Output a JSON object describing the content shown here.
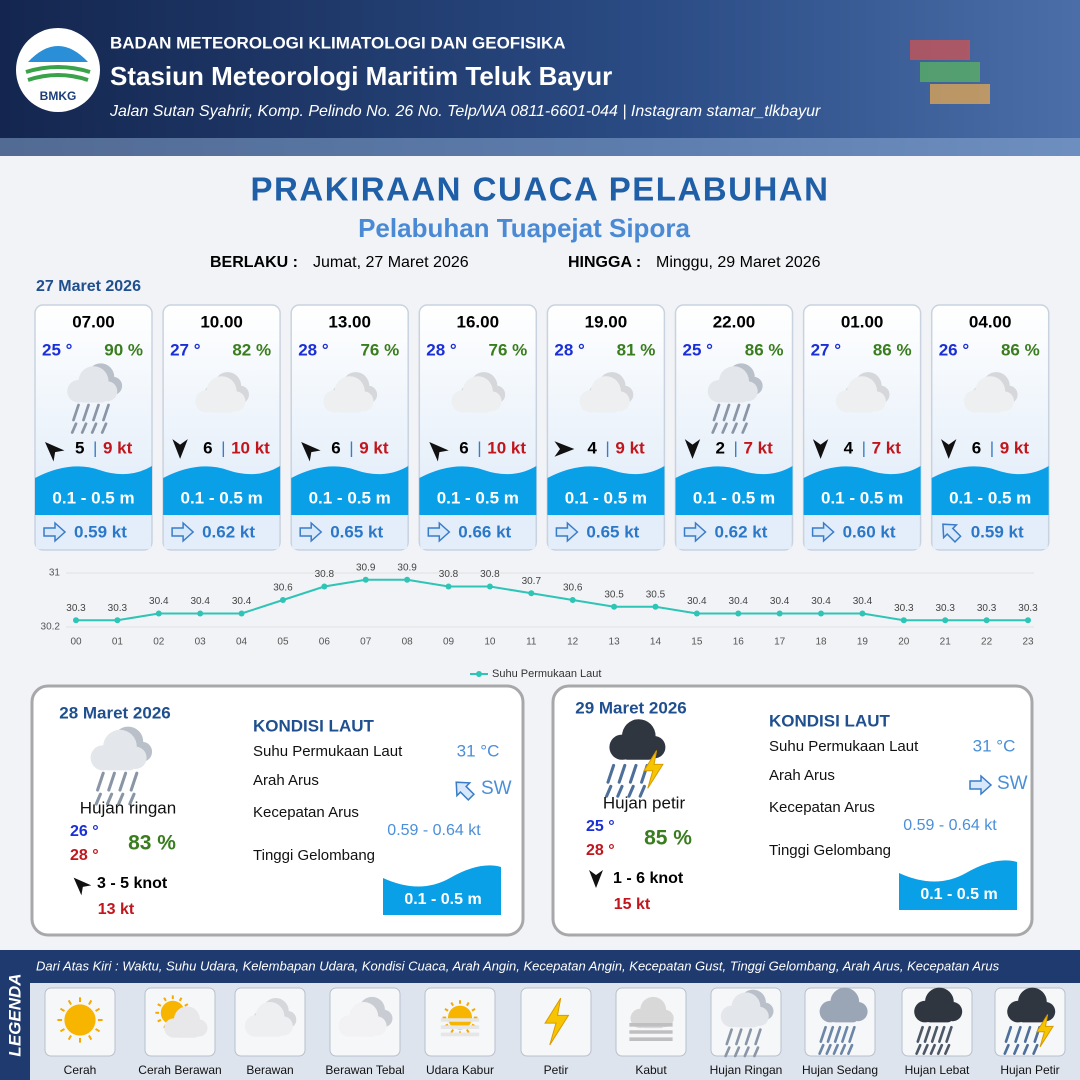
{
  "header": {
    "logo": "BMKG",
    "org": "BADAN METEOROLOGI KLIMATOLOGI DAN GEOFISIKA",
    "station": "Stasiun Meteorologi Maritim Teluk Bayur",
    "address": "Jalan Sutan Syahrir, Komp. Pelindo No. 26 No. Telp/WA 0811-6601-044 | Instagram stamar_tlkbayur"
  },
  "title": "PRAKIRAAN CUACA PELABUHAN",
  "subtitle": "Pelabuhan Tuapejat Sipora",
  "validity": {
    "from_label": "BERLAKU :",
    "from": "Jumat, 27 Maret 2026",
    "to_label": "HINGGA :",
    "to": "Minggu, 29 Maret 2026"
  },
  "day1": {
    "date": "27 Maret 2026",
    "slots": [
      {
        "time": "07.00",
        "temp": "25 °",
        "humidity": "90 %",
        "wind": "5",
        "gust": "9 kt",
        "wave": "0.1 - 0.5 m",
        "current": "0.59 kt"
      },
      {
        "time": "10.00",
        "temp": "27 °",
        "humidity": "82 %",
        "wind": "6",
        "gust": "10 kt",
        "wave": "0.1 - 0.5 m",
        "current": "0.62 kt"
      },
      {
        "time": "13.00",
        "temp": "28 °",
        "humidity": "76 %",
        "wind": "6",
        "gust": "9 kt",
        "wave": "0.1 - 0.5 m",
        "current": "0.65 kt"
      },
      {
        "time": "16.00",
        "temp": "28 °",
        "humidity": "76 %",
        "wind": "6",
        "gust": "10 kt",
        "wave": "0.1 - 0.5 m",
        "current": "0.66 kt"
      },
      {
        "time": "19.00",
        "temp": "28 °",
        "humidity": "81 %",
        "wind": "4",
        "gust": "9 kt",
        "wave": "0.1 - 0.5 m",
        "current": "0.65 kt"
      },
      {
        "time": "22.00",
        "temp": "25 °",
        "humidity": "86 %",
        "wind": "2",
        "gust": "7 kt",
        "wave": "0.1 - 0.5 m",
        "current": "0.62 kt"
      },
      {
        "time": "01.00",
        "temp": "27 °",
        "humidity": "86 %",
        "wind": "4",
        "gust": "7 kt",
        "wave": "0.1 - 0.5 m",
        "current": "0.60 kt"
      },
      {
        "time": "04.00",
        "temp": "26 °",
        "humidity": "86 %",
        "wind": "6",
        "gust": "9 kt",
        "wave": "0.1 - 0.5 m",
        "current": "0.59 kt"
      }
    ]
  },
  "chart_data": {
    "type": "line",
    "categories": [
      "00",
      "01",
      "02",
      "03",
      "04",
      "05",
      "06",
      "07",
      "08",
      "09",
      "10",
      "11",
      "12",
      "13",
      "14",
      "15",
      "16",
      "17",
      "18",
      "19",
      "20",
      "21",
      "22",
      "23"
    ],
    "series": [
      {
        "name": "Suhu Permukaan Laut",
        "color": "#2ec4b6",
        "values": [
          30.3,
          30.3,
          30.4,
          30.4,
          30.4,
          30.6,
          30.8,
          30.9,
          30.9,
          30.8,
          30.8,
          30.7,
          30.6,
          30.5,
          30.5,
          30.4,
          30.4,
          30.4,
          30.4,
          30.4,
          30.3,
          30.3,
          30.3,
          30.3
        ]
      }
    ],
    "ylim": [
      30.2,
      31
    ],
    "yticks": [
      30.2,
      31
    ]
  },
  "days": [
    {
      "date": "28 Maret 2026",
      "weather": "Hujan ringan",
      "temp_min": "26 °",
      "temp_max": "28 °",
      "humidity": "83 %",
      "wind": "3  - 5 knot",
      "gust": "13 kt",
      "sea": {
        "heading": "KONDISI LAUT",
        "sst_label": "Suhu Permukaan Laut",
        "sst": "31 °C",
        "dir_label": "Arah Arus",
        "dir": "SW",
        "speed_label": "Kecepatan Arus",
        "speed": "0.59 - 0.64 kt",
        "wave_label": "Tinggi Gelombang",
        "wave": "0.1 - 0.5 m"
      }
    },
    {
      "date": "29 Maret 2026",
      "weather": "Hujan petir",
      "temp_min": "25 °",
      "temp_max": "28 °",
      "humidity": "85 %",
      "wind": "1  - 6 knot",
      "gust": "15 kt",
      "sea": {
        "heading": "KONDISI LAUT",
        "sst_label": "Suhu Permukaan Laut",
        "sst": "31 °C",
        "dir_label": "Arah Arus",
        "dir": "SW",
        "speed_label": "Kecepatan Arus",
        "speed": "0.59 - 0.64 kt",
        "wave_label": "Tinggi Gelombang",
        "wave": "0.1 - 0.5 m"
      }
    }
  ],
  "legend": {
    "title": "LEGENDA",
    "description": "Dari Atas Kiri : Waktu, Suhu Udara, Kelembapan Udara, Kondisi Cuaca, Arah Angin, Kecepatan Angin, Kecepatan Gust, Tinggi Gelombang, Arah Arus, Kecepatan Arus",
    "items": [
      "Cerah",
      "Cerah Berawan",
      "Berawan",
      "Berawan Tebal",
      "Udara Kabur",
      "Petir",
      "Kabut",
      "Hujan Ringan",
      "Hujan Sedang",
      "Hujan Lebat",
      "Hujan Petir"
    ]
  }
}
